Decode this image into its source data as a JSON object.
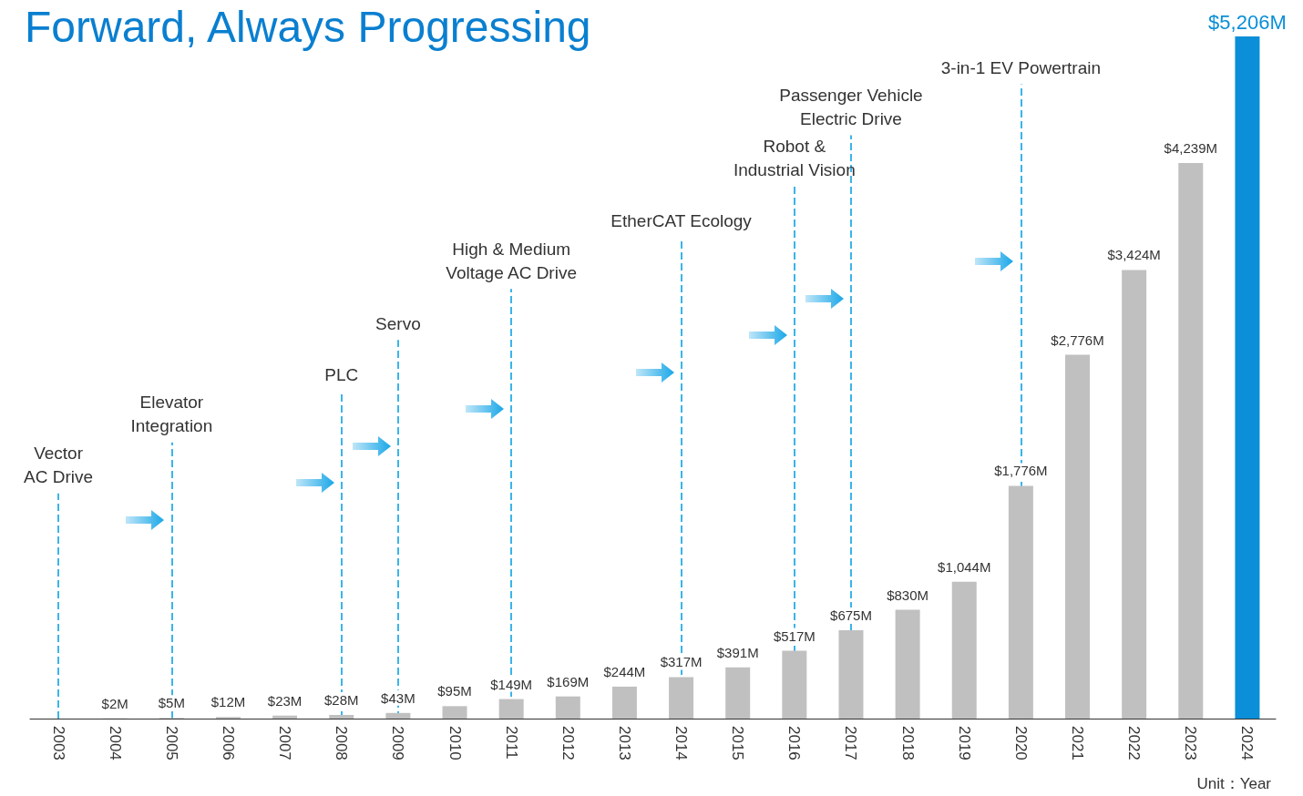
{
  "chart_data": {
    "type": "bar",
    "title": "Forward, Always Progressing",
    "categories": [
      "2003",
      "2004",
      "2005",
      "2006",
      "2007",
      "2008",
      "2009",
      "2010",
      "2011",
      "2012",
      "2013",
      "2014",
      "2015",
      "2016",
      "2017",
      "2018",
      "2019",
      "2020",
      "2021",
      "2022",
      "2023",
      "2024"
    ],
    "values": [
      null,
      2,
      5,
      12,
      23,
      28,
      43,
      95,
      149,
      169,
      244,
      317,
      391,
      517,
      675,
      830,
      1044,
      1776,
      2776,
      3424,
      4239,
      5206
    ],
    "value_labels": [
      null,
      "$2M",
      "$5M",
      "$12M",
      "$23M",
      "$28M",
      "$43M",
      "$95M",
      "$149M",
      "$169M",
      "$244M",
      "$317M",
      "$391M",
      "$517M",
      "$675M",
      "$830M",
      "$1,044M",
      "$1,776M",
      "$2,776M",
      "$3,424M",
      "$4,239M",
      "$5,206M"
    ],
    "colors": [
      "#c0c0c0",
      "#c0c0c0",
      "#c0c0c0",
      "#c0c0c0",
      "#c0c0c0",
      "#c0c0c0",
      "#c0c0c0",
      "#c0c0c0",
      "#c0c0c0",
      "#c0c0c0",
      "#c0c0c0",
      "#c0c0c0",
      "#c0c0c0",
      "#c0c0c0",
      "#c0c0c0",
      "#c0c0c0",
      "#c0c0c0",
      "#c0c0c0",
      "#c0c0c0",
      "#c0c0c0",
      "#c0c0c0",
      "#0a8fd8"
    ],
    "ref_lines": [
      {
        "axis": "x",
        "value": "2003",
        "label": "Vector\nAC Drive",
        "color": "#3bb4ea",
        "line_style": "dashed"
      },
      {
        "axis": "x",
        "value": "2005",
        "label": "Elevator\nIntegration",
        "color": "#3bb4ea",
        "line_style": "dashed"
      },
      {
        "axis": "x",
        "value": "2008",
        "label": "PLC",
        "color": "#3bb4ea",
        "line_style": "dashed"
      },
      {
        "axis": "x",
        "value": "2009",
        "label": "Servo",
        "color": "#3bb4ea",
        "line_style": "dashed"
      },
      {
        "axis": "x",
        "value": "2011",
        "label": "High & Medium\nVoltage AC Drive",
        "color": "#3bb4ea",
        "line_style": "dashed"
      },
      {
        "axis": "x",
        "value": "2014",
        "label": "EtherCAT Ecology",
        "color": "#3bb4ea",
        "line_style": "dashed"
      },
      {
        "axis": "x",
        "value": "2016",
        "label": "Robot &\nIndustrial Vision",
        "color": "#3bb4ea",
        "line_style": "dashed"
      },
      {
        "axis": "x",
        "value": "2017",
        "label": "Passenger Vehicle\nElectric Drive",
        "color": "#3bb4ea",
        "line_style": "dashed"
      },
      {
        "axis": "x",
        "value": "2020",
        "label": "3-in-1 EV Powertrain",
        "color": "#3bb4ea",
        "line_style": "dashed"
      }
    ],
    "annotations": [
      "Unit：Year"
    ],
    "grid": false
  }
}
